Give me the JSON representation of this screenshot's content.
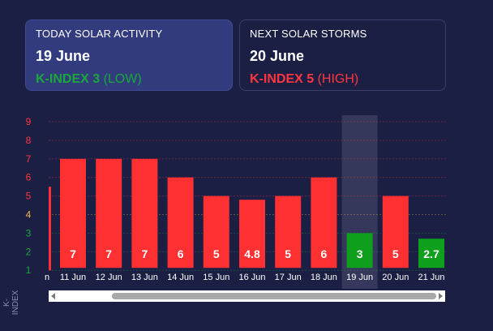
{
  "today": {
    "heading": "TODAY SOLAR ACTIVITY",
    "date": "19 June",
    "k_label": "K-INDEX 3",
    "level": "(LOW)"
  },
  "next": {
    "heading": "NEXT SOLAR STORMS",
    "date": "20 June",
    "k_label": "K-INDEX 5",
    "level": "(HIGH)"
  },
  "colors": {
    "background": "#1c1f44",
    "high": "#ff3032",
    "low": "#0e9f1d",
    "moderate_tick": "#f2b24c"
  },
  "chart_data": {
    "type": "bar",
    "ylabel": "K-INDEX",
    "ylim": [
      1,
      9
    ],
    "y_ticks": [
      "1",
      "2",
      "3",
      "4",
      "5",
      "6",
      "7",
      "8",
      "9"
    ],
    "y_tick_colors": [
      "#1aa83a",
      "#1aa83a",
      "#1aa83a",
      "#f2b24c",
      "#ff3640",
      "#ff3640",
      "#ff3640",
      "#ff3640",
      "#ff3640"
    ],
    "partial_left_value": 5.5,
    "partial_left_label": "n",
    "categories": [
      "11 Jun",
      "12 Jun",
      "13 Jun",
      "14 Jun",
      "15 Jun",
      "16 Jun",
      "17 Jun",
      "18 Jun",
      "19 Jun",
      "20 Jun",
      "21 Jun"
    ],
    "values": [
      7,
      7,
      7,
      6,
      5,
      4.8,
      5,
      6,
      3,
      5,
      2.7
    ],
    "value_labels": [
      "7",
      "7",
      "7",
      "6",
      "5",
      "4.8",
      "5",
      "6",
      "3",
      "5",
      "2.7"
    ],
    "highlighted_category": "19 Jun",
    "grid": true
  },
  "scrollbar": {
    "left_arrow": "left-arrow-icon",
    "right_arrow": "right-arrow-icon"
  }
}
